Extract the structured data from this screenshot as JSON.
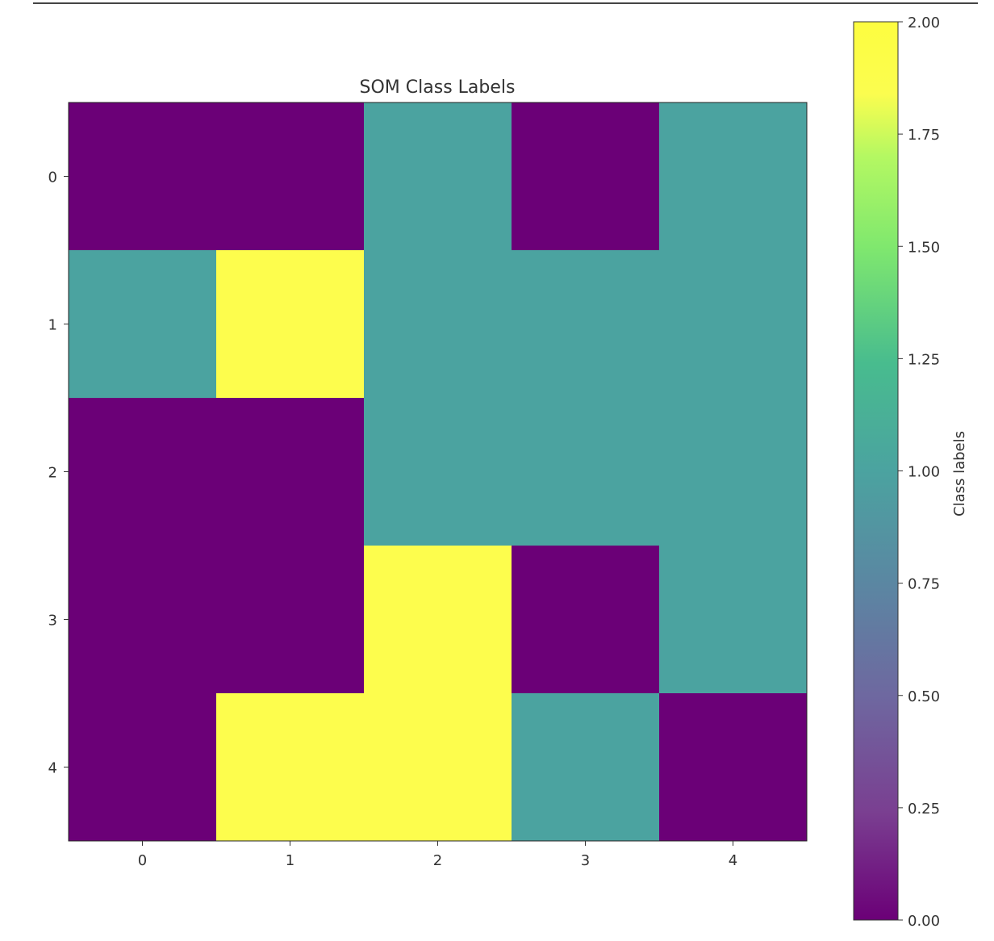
{
  "chart_data": {
    "type": "heatmap",
    "title": "SOM Class Labels",
    "x_ticks": [
      "0",
      "1",
      "2",
      "3",
      "4"
    ],
    "y_ticks": [
      "0",
      "1",
      "2",
      "3",
      "4"
    ],
    "values": [
      [
        0,
        0,
        1,
        0,
        1
      ],
      [
        1,
        2,
        1,
        1,
        1
      ],
      [
        0,
        0,
        1,
        1,
        1
      ],
      [
        0,
        0,
        2,
        0,
        1
      ],
      [
        0,
        2,
        2,
        1,
        0
      ]
    ],
    "colorbar": {
      "label": "Class labels",
      "range": [
        0,
        2
      ],
      "ticks": [
        "0.00",
        "0.25",
        "0.50",
        "0.75",
        "1.00",
        "1.25",
        "1.50",
        "1.75",
        "2.00"
      ],
      "colors": {
        "0": "#6b0077",
        "1": "#4ba3a0",
        "2": "#fdfd4d"
      }
    },
    "grid": false
  }
}
